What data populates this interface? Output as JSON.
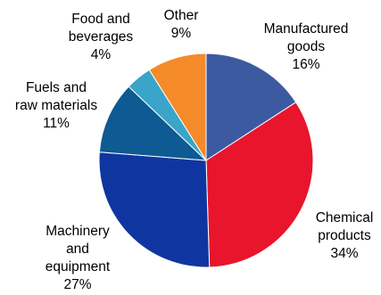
{
  "chart_data": {
    "type": "pie",
    "slices": [
      {
        "label_lines": [
          "Manufactured",
          "goods"
        ],
        "value": 16,
        "value_label": "16%",
        "color": "#3b5aa0"
      },
      {
        "label_lines": [
          "Chemical",
          "products"
        ],
        "value": 34,
        "value_label": "34%",
        "color": "#e8152c"
      },
      {
        "label_lines": [
          "Machinery",
          "and",
          "equipment"
        ],
        "value": 27,
        "value_label": "27%",
        "color": "#0f36a0"
      },
      {
        "label_lines": [
          "Fuels and",
          "raw materials"
        ],
        "value": 11,
        "value_label": "11%",
        "color": "#0e5a93"
      },
      {
        "label_lines": [
          "Food and",
          "beverages"
        ],
        "value": 4,
        "value_label": "4%",
        "color": "#3aa5c8"
      },
      {
        "label_lines": [
          "Other"
        ],
        "value": 9,
        "value_label": "9%",
        "color": "#f58a2a"
      }
    ],
    "start_angle": "12 o'clock",
    "direction": "clockwise",
    "legend": "none",
    "slice_border_color": "#ffffff"
  }
}
